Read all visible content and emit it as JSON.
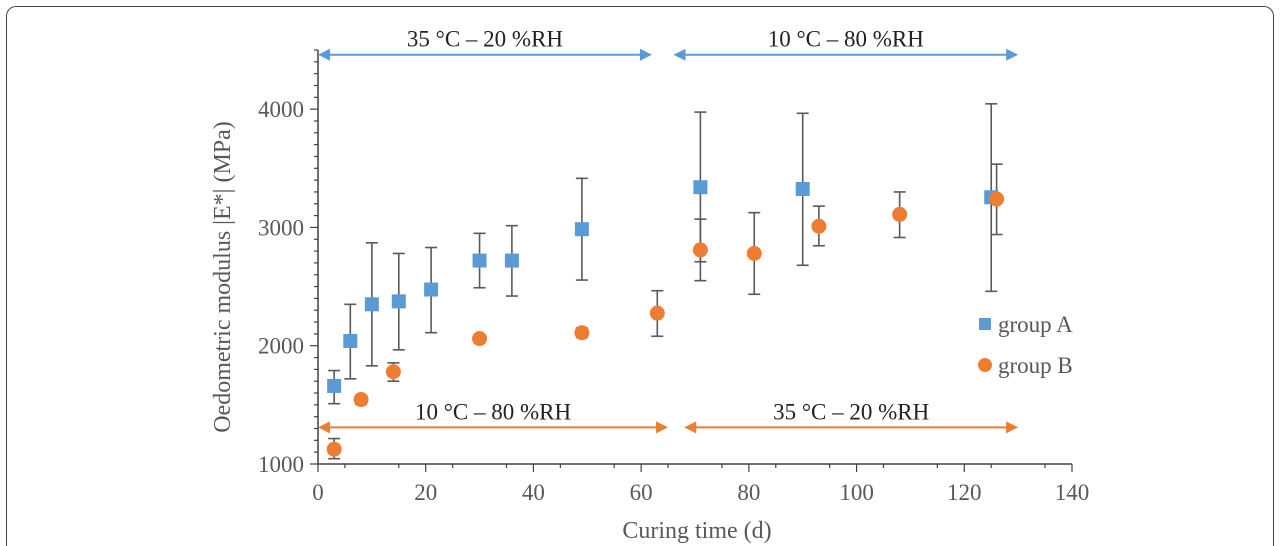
{
  "chart_data": {
    "type": "scatter",
    "title": "",
    "xlabel": "Curing time (d)",
    "ylabel": "Oedometric modulus |E*| (MPa)",
    "xlim": [
      0,
      140
    ],
    "ylim": [
      1000,
      4500
    ],
    "xticks": [
      0,
      20,
      40,
      60,
      80,
      100,
      120,
      140
    ],
    "yticks": [
      1000,
      2000,
      3000,
      4000
    ],
    "grid": false,
    "legend_position": "right",
    "series": [
      {
        "name": "group A",
        "marker": "square",
        "color": "#5b9bd5",
        "points": [
          {
            "x": 3,
            "y": 1660,
            "err_low": 1510,
            "err_high": 1790
          },
          {
            "x": 6,
            "y": 2040,
            "err_low": 1720,
            "err_high": 2350
          },
          {
            "x": 10,
            "y": 2350,
            "err_low": 1830,
            "err_high": 2870
          },
          {
            "x": 15,
            "y": 2375,
            "err_low": 1965,
            "err_high": 2780
          },
          {
            "x": 21,
            "y": 2475,
            "err_low": 2110,
            "err_high": 2830
          },
          {
            "x": 30,
            "y": 2720,
            "err_low": 2490,
            "err_high": 2950
          },
          {
            "x": 36,
            "y": 2720,
            "err_low": 2420,
            "err_high": 3015
          },
          {
            "x": 49,
            "y": 2985,
            "err_low": 2555,
            "err_high": 3415
          },
          {
            "x": 71,
            "y": 3340,
            "err_low": 2710,
            "err_high": 3975
          },
          {
            "x": 90,
            "y": 3325,
            "err_low": 2680,
            "err_high": 3965
          },
          {
            "x": 125,
            "y": 3255,
            "err_low": 2460,
            "err_high": 4045
          }
        ]
      },
      {
        "name": "group B",
        "marker": "circle",
        "color": "#ed7d31",
        "points": [
          {
            "x": 3,
            "y": 1125,
            "err_low": 1045,
            "err_high": 1215
          },
          {
            "x": 8,
            "y": 1545,
            "err_low": 1505,
            "err_high": 1580
          },
          {
            "x": 14,
            "y": 1780,
            "err_low": 1700,
            "err_high": 1855
          },
          {
            "x": 30,
            "y": 2060,
            "err_low": 2030,
            "err_high": 2090
          },
          {
            "x": 49,
            "y": 2110,
            "err_low": 2070,
            "err_high": 2150
          },
          {
            "x": 63,
            "y": 2275,
            "err_low": 2080,
            "err_high": 2465
          },
          {
            "x": 71,
            "y": 2810,
            "err_low": 2550,
            "err_high": 3070
          },
          {
            "x": 81,
            "y": 2780,
            "err_low": 2435,
            "err_high": 3125
          },
          {
            "x": 93,
            "y": 3010,
            "err_low": 2845,
            "err_high": 3180
          },
          {
            "x": 108,
            "y": 3110,
            "err_low": 2915,
            "err_high": 3300
          },
          {
            "x": 126,
            "y": 3240,
            "err_low": 2940,
            "err_high": 3535
          }
        ]
      }
    ],
    "annotations": [
      {
        "id": "top-left",
        "label": "35 °C – 20 %RH",
        "x_start": 0,
        "x_end": 62,
        "y": 4460,
        "color": "#5b9bd5",
        "text_above": true
      },
      {
        "id": "top-right",
        "label": "10 °C – 80 %RH",
        "x_start": 66,
        "x_end": 130,
        "y": 4460,
        "color": "#5b9bd5",
        "text_above": true
      },
      {
        "id": "bottom-left",
        "label": "10 °C – 80 %RH",
        "x_start": 0,
        "x_end": 65,
        "y": 1310,
        "color": "#ed7d31",
        "text_above": true
      },
      {
        "id": "bottom-right",
        "label": "35 °C – 20 %RH",
        "x_start": 68,
        "x_end": 130,
        "y": 1310,
        "color": "#ed7d31",
        "text_above": true
      }
    ]
  }
}
